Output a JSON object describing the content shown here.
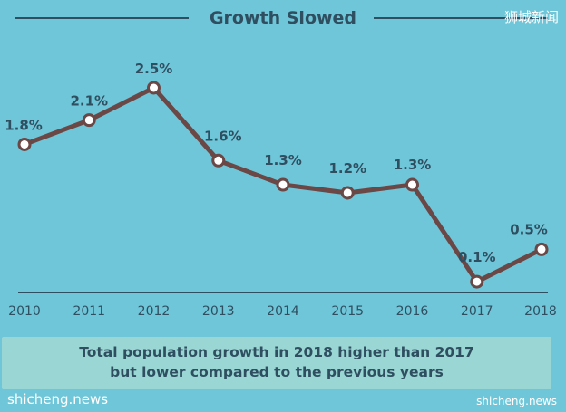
{
  "watermarks": {
    "top_right": "狮城新闻",
    "bottom_left": "shicheng.news",
    "bottom_right": "shicheng.news"
  },
  "colors": {
    "background": "#6fc6d8",
    "line": "#6b4746",
    "marker_fill": "#ffffff",
    "text": "#2f4f61",
    "caption_box": "#9fd8d4"
  },
  "chart_data": {
    "type": "line",
    "title": "Growth Slowed",
    "x": [
      "2010",
      "2011",
      "2012",
      "2013",
      "2014",
      "2015",
      "2016",
      "2017",
      "2018"
    ],
    "series": [
      {
        "values": [
          1.8,
          2.1,
          2.5,
          1.6,
          1.3,
          1.2,
          1.3,
          0.1,
          0.5
        ],
        "labels": [
          "1.8%",
          "2.1%",
          "2.5%",
          "1.6%",
          "1.3%",
          "1.2%",
          "1.3%",
          "0.1%",
          "0.5%"
        ]
      }
    ],
    "xlabel": "",
    "ylabel": "",
    "ylim": [
      0,
      2.5
    ],
    "grid": false,
    "legend": "none"
  },
  "caption": {
    "line1": "Total population growth in 2018 higher than 2017",
    "line2": "but lower compared to the previous years"
  }
}
